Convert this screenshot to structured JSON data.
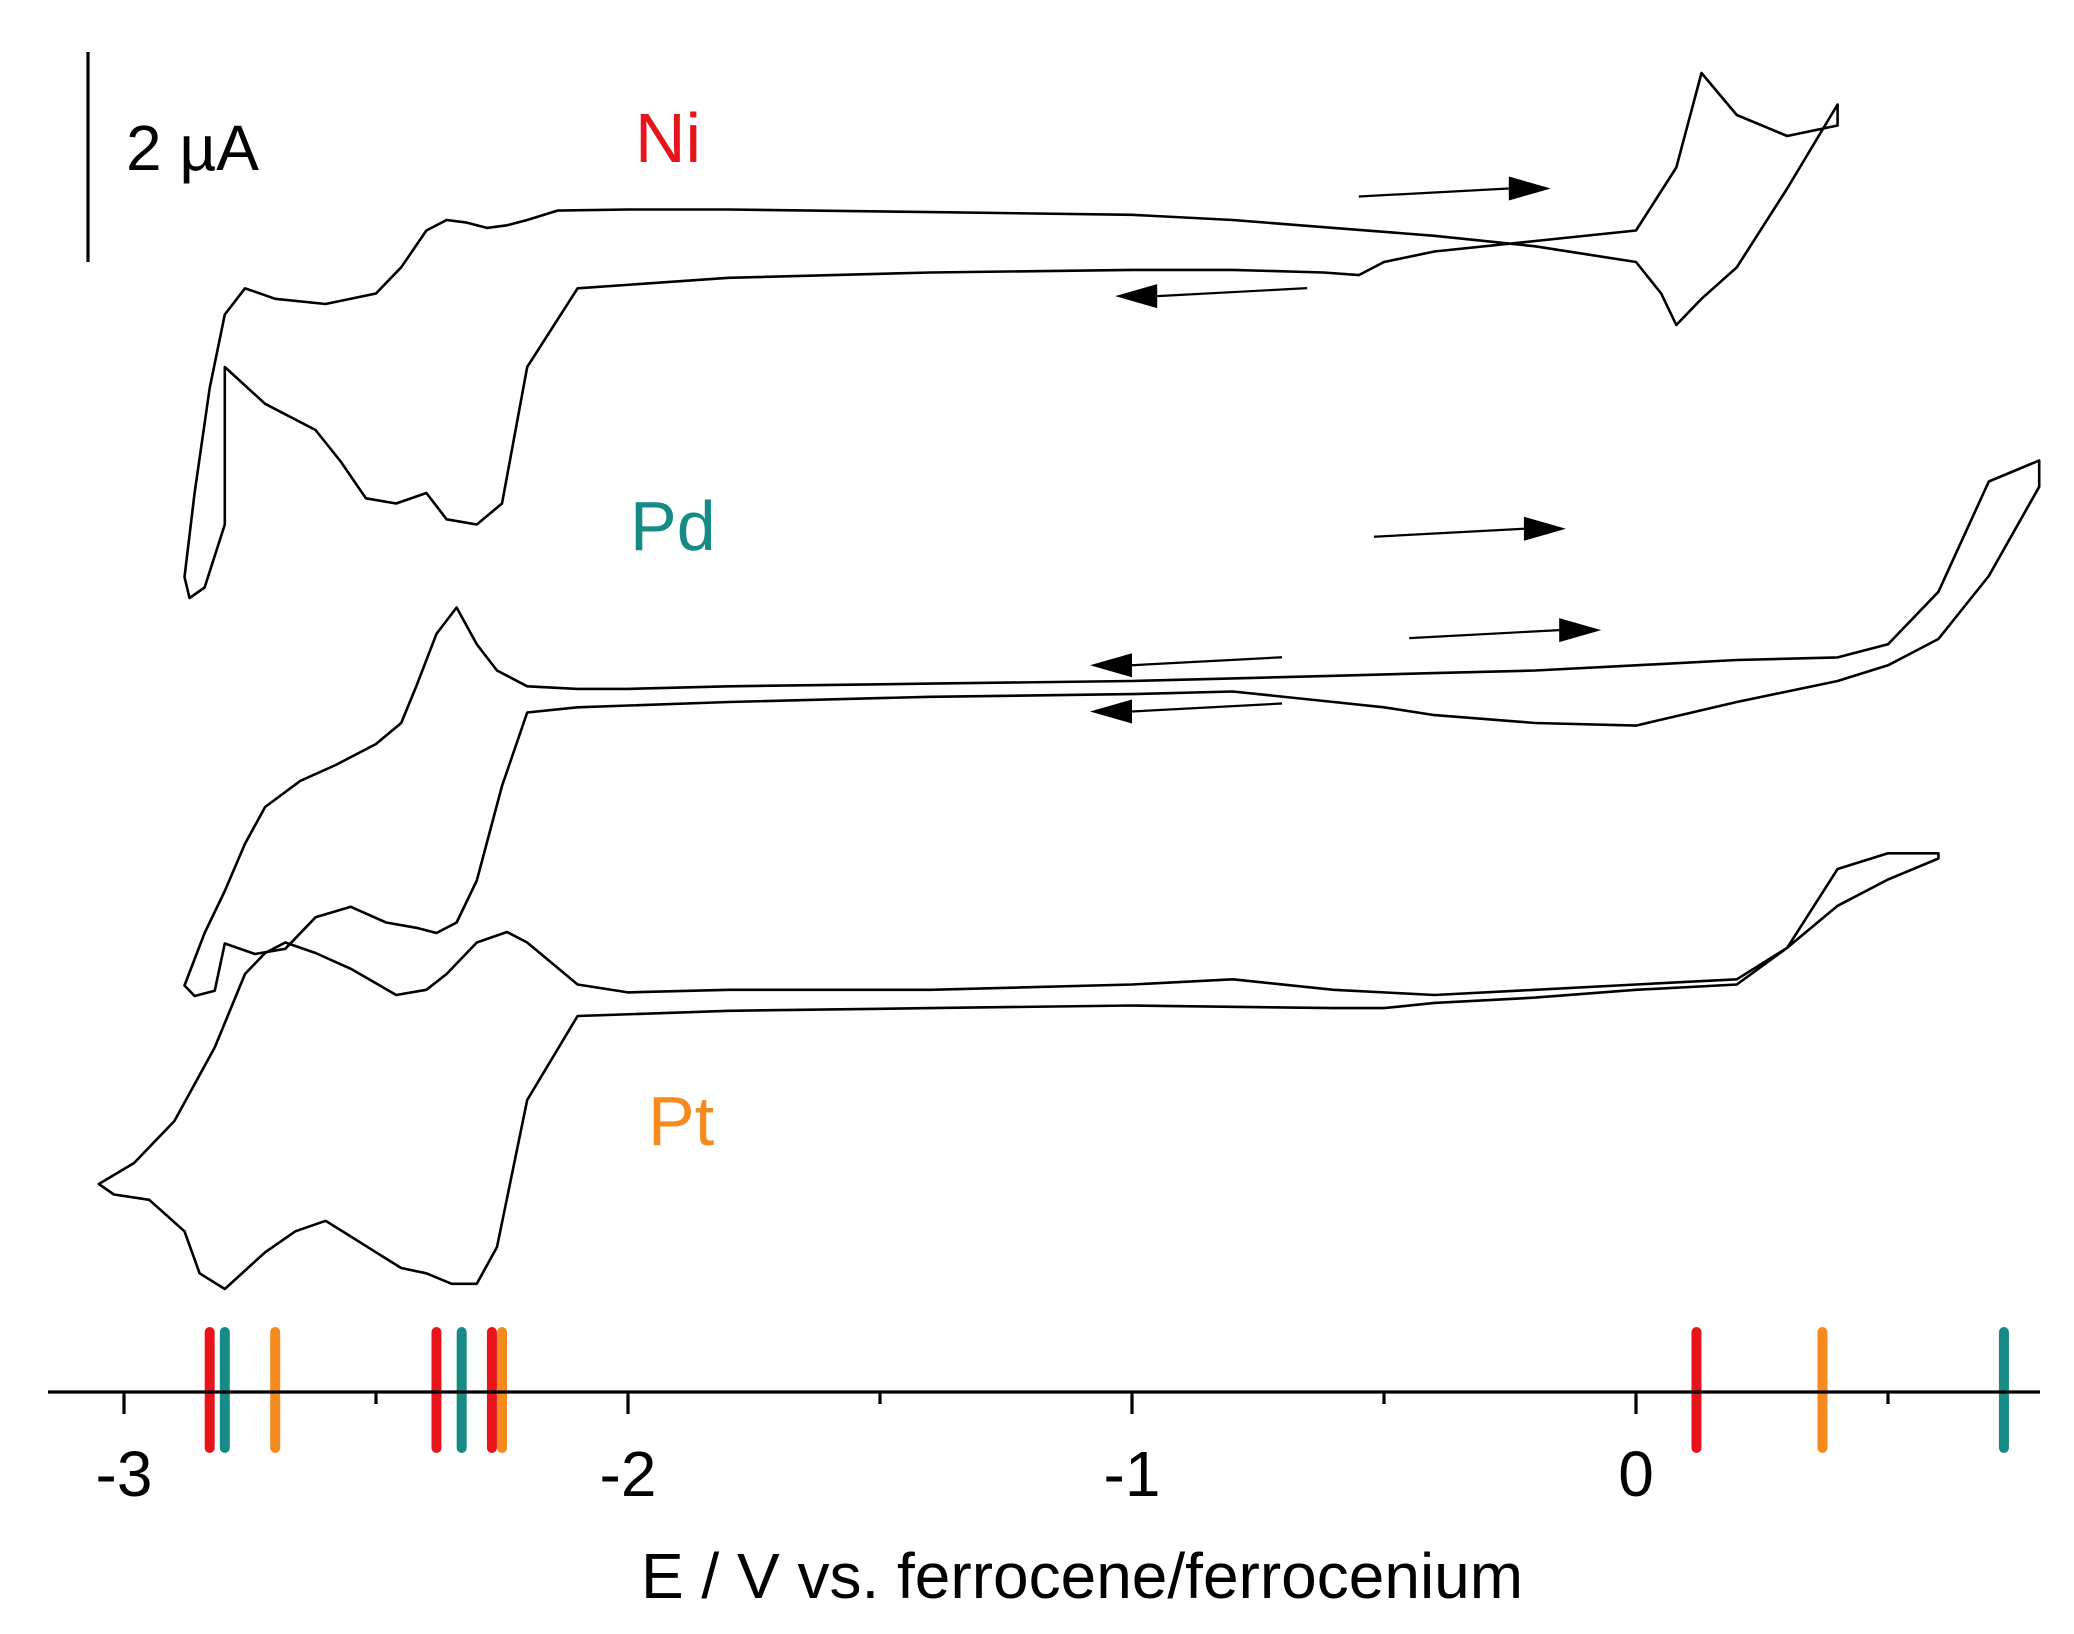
{
  "chart_data": {
    "type": "line",
    "title": "",
    "xlabel": "E / V vs. ferrocene/ferrocenium",
    "ylabel": "",
    "xlim": [
      -3.15,
      0.8
    ],
    "x_ticks": [
      -3,
      -2,
      -1,
      0
    ],
    "x_tick_labels": [
      "-3",
      "-2",
      "-1",
      "0"
    ],
    "x_minor_ticks": [
      -2.5,
      -1.5,
      -0.5,
      0.5
    ],
    "scale_bar": {
      "label": "2 µA",
      "value_uA": 2
    },
    "grid": false,
    "colors": {
      "Ni": "#e8141c",
      "Pd": "#168a84",
      "Pt": "#f78a1f",
      "trace": "#000000"
    },
    "series": [
      {
        "name": "Ni",
        "label_color": "#e8141c",
        "sweep_arrows": [
          "forward (anodic) upper branch",
          "reverse (cathodic) lower branch"
        ],
        "peaks_V": [
          -2.83,
          -2.38,
          -2.27,
          0.13
        ],
        "x": [
          -2.8,
          -2.72,
          -2.62,
          -2.57,
          -2.52,
          -2.46,
          -2.4,
          -2.36,
          -2.3,
          -2.25,
          -2.2,
          -2.1,
          -1.8,
          -1.4,
          -1.0,
          -0.8,
          -0.62,
          -0.55,
          -0.5,
          -0.4,
          -0.2,
          0.0,
          0.08,
          0.13,
          0.2,
          0.3,
          0.4,
          0.4,
          0.3,
          0.2,
          0.13,
          0.08,
          0.05,
          0.0,
          -0.2,
          -0.4,
          -0.6,
          -0.8,
          -1.0,
          -1.4,
          -1.8,
          -2.0,
          -2.14,
          -2.2,
          -2.24,
          -2.28,
          -2.32,
          -2.36,
          -2.4,
          -2.45,
          -2.5,
          -2.6,
          -2.7,
          -2.76,
          -2.8,
          -2.83,
          -2.86,
          -2.88,
          -2.87,
          -2.84,
          -2.8
        ],
        "y_uA": [
          -2.8,
          -3.5,
          -4.0,
          -4.6,
          -5.3,
          -5.4,
          -5.2,
          -5.7,
          -5.8,
          -5.4,
          -2.8,
          -1.3,
          -1.1,
          -1.0,
          -0.95,
          -0.95,
          -1.0,
          -1.05,
          -0.8,
          -0.6,
          -0.4,
          -0.2,
          1.0,
          2.8,
          2.0,
          1.6,
          1.8,
          2.2,
          0.6,
          -0.9,
          -1.5,
          -2.0,
          -1.4,
          -0.8,
          -0.5,
          -0.3,
          -0.15,
          0.0,
          0.1,
          0.15,
          0.2,
          0.2,
          0.18,
          0.0,
          -0.1,
          -0.15,
          -0.05,
          0.0,
          -0.2,
          -0.9,
          -1.4,
          -1.6,
          -1.5,
          -1.3,
          -1.8,
          -3.2,
          -5.2,
          -6.8,
          -7.2,
          -7.0,
          -5.8
        ]
      },
      {
        "name": "Pd",
        "label_color": "#168a84",
        "sweep_arrows": [
          "forward (anodic) upper branch",
          "reverse (cathodic) lower branch"
        ],
        "peaks_V": [
          -2.82,
          -2.37,
          0.73
        ],
        "x": [
          -2.8,
          -2.74,
          -2.68,
          -2.62,
          -2.55,
          -2.48,
          -2.42,
          -2.38,
          -2.34,
          -2.3,
          -2.25,
          -2.2,
          -2.1,
          -1.8,
          -1.4,
          -1.0,
          -0.8,
          -0.6,
          -0.5,
          -0.4,
          -0.2,
          0.0,
          0.2,
          0.4,
          0.5,
          0.6,
          0.7,
          0.8,
          0.8,
          0.7,
          0.6,
          0.5,
          0.4,
          0.2,
          0.0,
          -0.2,
          -0.4,
          -0.6,
          -0.8,
          -1.0,
          -1.4,
          -1.8,
          -2.0,
          -2.1,
          -2.2,
          -2.26,
          -2.3,
          -2.34,
          -2.38,
          -2.42,
          -2.45,
          -2.5,
          -2.58,
          -2.65,
          -2.72,
          -2.76,
          -2.8,
          -2.84,
          -2.88,
          -2.86,
          -2.82
        ],
        "y_uA": [
          -6.2,
          -6.4,
          -6.3,
          -5.7,
          -5.5,
          -5.8,
          -5.9,
          -6.0,
          -5.8,
          -5.0,
          -3.2,
          -1.8,
          -1.7,
          -1.6,
          -1.5,
          -1.45,
          -1.4,
          -1.6,
          -1.7,
          -1.85,
          -2.0,
          -2.05,
          -1.6,
          -1.2,
          -0.9,
          -0.4,
          0.8,
          2.5,
          3.0,
          2.6,
          0.5,
          -0.5,
          -0.75,
          -0.8,
          -0.9,
          -1.0,
          -1.05,
          -1.1,
          -1.15,
          -1.2,
          -1.25,
          -1.3,
          -1.35,
          -1.35,
          -1.3,
          -1.0,
          -0.5,
          0.2,
          -0.3,
          -1.3,
          -2.0,
          -2.4,
          -2.8,
          -3.1,
          -3.6,
          -4.3,
          -5.2,
          -6.0,
          -7.0,
          -7.2,
          -7.1
        ]
      },
      {
        "name": "Pt",
        "label_color": "#f78a1f",
        "sweep_arrows": [
          "forward (anodic) upper branch",
          "reverse (cathodic) lower branch"
        ],
        "peaks_V": [
          -2.72,
          -2.27,
          -2.24,
          0.38
        ],
        "x": [
          -2.85,
          -2.8,
          -2.72,
          -2.66,
          -2.6,
          -2.55,
          -2.5,
          -2.45,
          -2.4,
          -2.35,
          -2.3,
          -2.26,
          -2.2,
          -2.1,
          -1.8,
          -1.4,
          -1.0,
          -0.6,
          -0.5,
          -0.4,
          -0.2,
          0.0,
          0.2,
          0.3,
          0.4,
          0.5,
          0.6,
          0.6,
          0.5,
          0.4,
          0.3,
          0.2,
          0.0,
          -0.2,
          -0.4,
          -0.6,
          -0.8,
          -1.0,
          -1.4,
          -1.8,
          -2.0,
          -2.1,
          -2.2,
          -2.24,
          -2.3,
          -2.36,
          -2.4,
          -2.46,
          -2.55,
          -2.62,
          -2.68,
          -2.72,
          -2.76,
          -2.82,
          -2.9,
          -2.98,
          -3.05,
          -3.02,
          -2.95,
          -2.88,
          -2.85
        ],
        "y_uA": [
          -11.3,
          -11.6,
          -10.9,
          -10.5,
          -10.3,
          -10.6,
          -10.9,
          -11.2,
          -11.3,
          -11.5,
          -11.5,
          -10.8,
          -8.0,
          -6.4,
          -6.3,
          -6.25,
          -6.2,
          -6.25,
          -6.25,
          -6.15,
          -6.05,
          -5.9,
          -5.8,
          -5.1,
          -4.3,
          -3.8,
          -3.4,
          -3.3,
          -3.3,
          -3.6,
          -5.1,
          -5.7,
          -5.8,
          -5.9,
          -6.0,
          -5.9,
          -5.7,
          -5.8,
          -5.9,
          -5.9,
          -5.95,
          -5.8,
          -5.0,
          -4.8,
          -5.0,
          -5.6,
          -5.9,
          -6.0,
          -5.5,
          -5.2,
          -5.0,
          -5.2,
          -5.6,
          -7.0,
          -8.4,
          -9.2,
          -9.6,
          -9.8,
          -9.9,
          -10.5,
          -11.3
        ]
      }
    ],
    "marker_positions_V": {
      "Ni": [
        -2.83,
        -2.38,
        -2.27,
        0.12
      ],
      "Pd": [
        -2.8,
        -2.33
      ],
      "Pt": [
        -2.7,
        -2.25,
        0.37
      ]
    },
    "marker_positions_extra_V": {
      "Pd": [
        0.73
      ]
    }
  }
}
